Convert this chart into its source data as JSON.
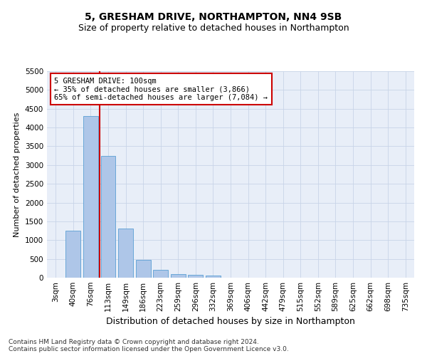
{
  "title": "5, GRESHAM DRIVE, NORTHAMPTON, NN4 9SB",
  "subtitle": "Size of property relative to detached houses in Northampton",
  "xlabel": "Distribution of detached houses by size in Northampton",
  "ylabel": "Number of detached properties",
  "categories": [
    "3sqm",
    "40sqm",
    "76sqm",
    "113sqm",
    "149sqm",
    "186sqm",
    "223sqm",
    "259sqm",
    "296sqm",
    "332sqm",
    "369sqm",
    "406sqm",
    "442sqm",
    "479sqm",
    "515sqm",
    "552sqm",
    "589sqm",
    "625sqm",
    "662sqm",
    "698sqm",
    "735sqm"
  ],
  "values": [
    0,
    1250,
    4300,
    3250,
    1300,
    480,
    200,
    100,
    80,
    50,
    0,
    0,
    0,
    0,
    0,
    0,
    0,
    0,
    0,
    0,
    0
  ],
  "bar_color": "#aec6e8",
  "bar_edge_color": "#5a9fd4",
  "vline_x_index": 2,
  "vline_color": "#cc0000",
  "annotation_title": "5 GRESHAM DRIVE: 100sqm",
  "annotation_line1": "← 35% of detached houses are smaller (3,866)",
  "annotation_line2": "65% of semi-detached houses are larger (7,084) →",
  "annotation_box_color": "#ffffff",
  "annotation_box_edge": "#cc0000",
  "ylim": [
    0,
    5500
  ],
  "yticks": [
    0,
    500,
    1000,
    1500,
    2000,
    2500,
    3000,
    3500,
    4000,
    4500,
    5000,
    5500
  ],
  "footer_line1": "Contains HM Land Registry data © Crown copyright and database right 2024.",
  "footer_line2": "Contains public sector information licensed under the Open Government Licence v3.0.",
  "bg_color": "#ffffff",
  "plot_bg_color": "#e8eef8",
  "grid_color": "#c8d4e8",
  "title_fontsize": 10,
  "subtitle_fontsize": 9,
  "ylabel_fontsize": 8,
  "xlabel_fontsize": 9,
  "tick_fontsize": 7.5,
  "annot_fontsize": 7.5,
  "footer_fontsize": 6.5
}
